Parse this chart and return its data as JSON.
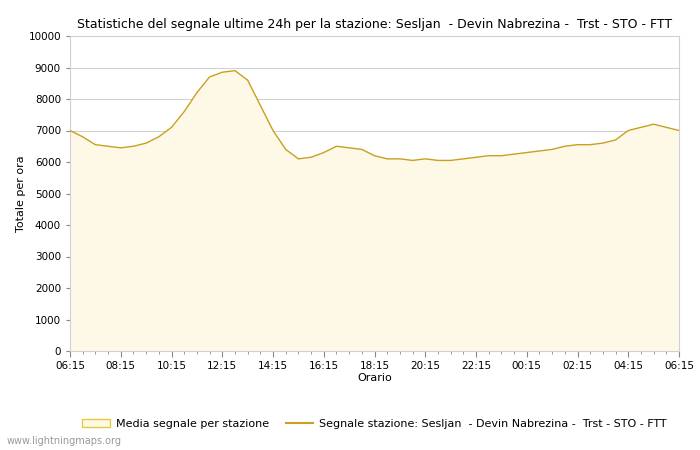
{
  "title": "Statistiche del segnale ultime 24h per la stazione: Sesljan  - Devin Nabrezina -  Trst - STO - FTT",
  "xlabel": "Orario",
  "ylabel": "Totale per ora",
  "x_ticks": [
    "06:15",
    "08:15",
    "10:15",
    "12:15",
    "14:15",
    "16:15",
    "18:15",
    "20:15",
    "22:15",
    "00:15",
    "02:15",
    "04:15",
    "06:15"
  ],
  "ylim": [
    0,
    10000
  ],
  "yticks": [
    0,
    1000,
    2000,
    3000,
    4000,
    5000,
    6000,
    7000,
    8000,
    9000,
    10000
  ],
  "fill_color": "#fef9e7",
  "fill_edge_color": "#e8c840",
  "line_color": "#c8a020",
  "background_color": "#ffffff",
  "grid_color": "#c8c8c8",
  "legend_patch_label": "Media segnale per stazione",
  "legend_line_label": "Segnale stazione: Sesljan  - Devin Nabrezina -  Trst - STO - FTT",
  "watermark": "www.lightningmaps.org",
  "x_values": [
    0,
    1,
    2,
    3,
    4,
    5,
    6,
    7,
    8,
    9,
    10,
    11,
    12,
    13,
    14,
    15,
    16,
    17,
    18,
    19,
    20,
    21,
    22,
    23,
    24,
    25,
    26,
    27,
    28,
    29,
    30,
    31,
    32,
    33,
    34,
    35,
    36,
    37,
    38,
    39,
    40,
    41,
    42,
    43,
    44,
    45,
    46,
    47,
    48
  ],
  "fill_values": [
    7000,
    6800,
    6550,
    6500,
    6450,
    6500,
    6600,
    6800,
    7100,
    7600,
    8200,
    8700,
    8850,
    8900,
    8600,
    7800,
    7000,
    6400,
    6100,
    6150,
    6300,
    6500,
    6450,
    6400,
    6200,
    6100,
    6100,
    6050,
    6100,
    6050,
    6050,
    6100,
    6150,
    6200,
    6200,
    6250,
    6300,
    6350,
    6400,
    6500,
    6550,
    6550,
    6600,
    6700,
    7000,
    7100,
    7200,
    7100,
    7000
  ],
  "line_values": [
    7000,
    6800,
    6550,
    6500,
    6450,
    6500,
    6600,
    6800,
    7100,
    7600,
    8200,
    8700,
    8850,
    8900,
    8600,
    7800,
    7000,
    6400,
    6100,
    6150,
    6300,
    6500,
    6450,
    6400,
    6200,
    6100,
    6100,
    6050,
    6100,
    6050,
    6050,
    6100,
    6150,
    6200,
    6200,
    6250,
    6300,
    6350,
    6400,
    6500,
    6550,
    6550,
    6600,
    6700,
    7000,
    7100,
    7200,
    7100,
    7000
  ],
  "title_fontsize": 9,
  "axis_fontsize": 8,
  "tick_fontsize": 7.5,
  "legend_fontsize": 8
}
